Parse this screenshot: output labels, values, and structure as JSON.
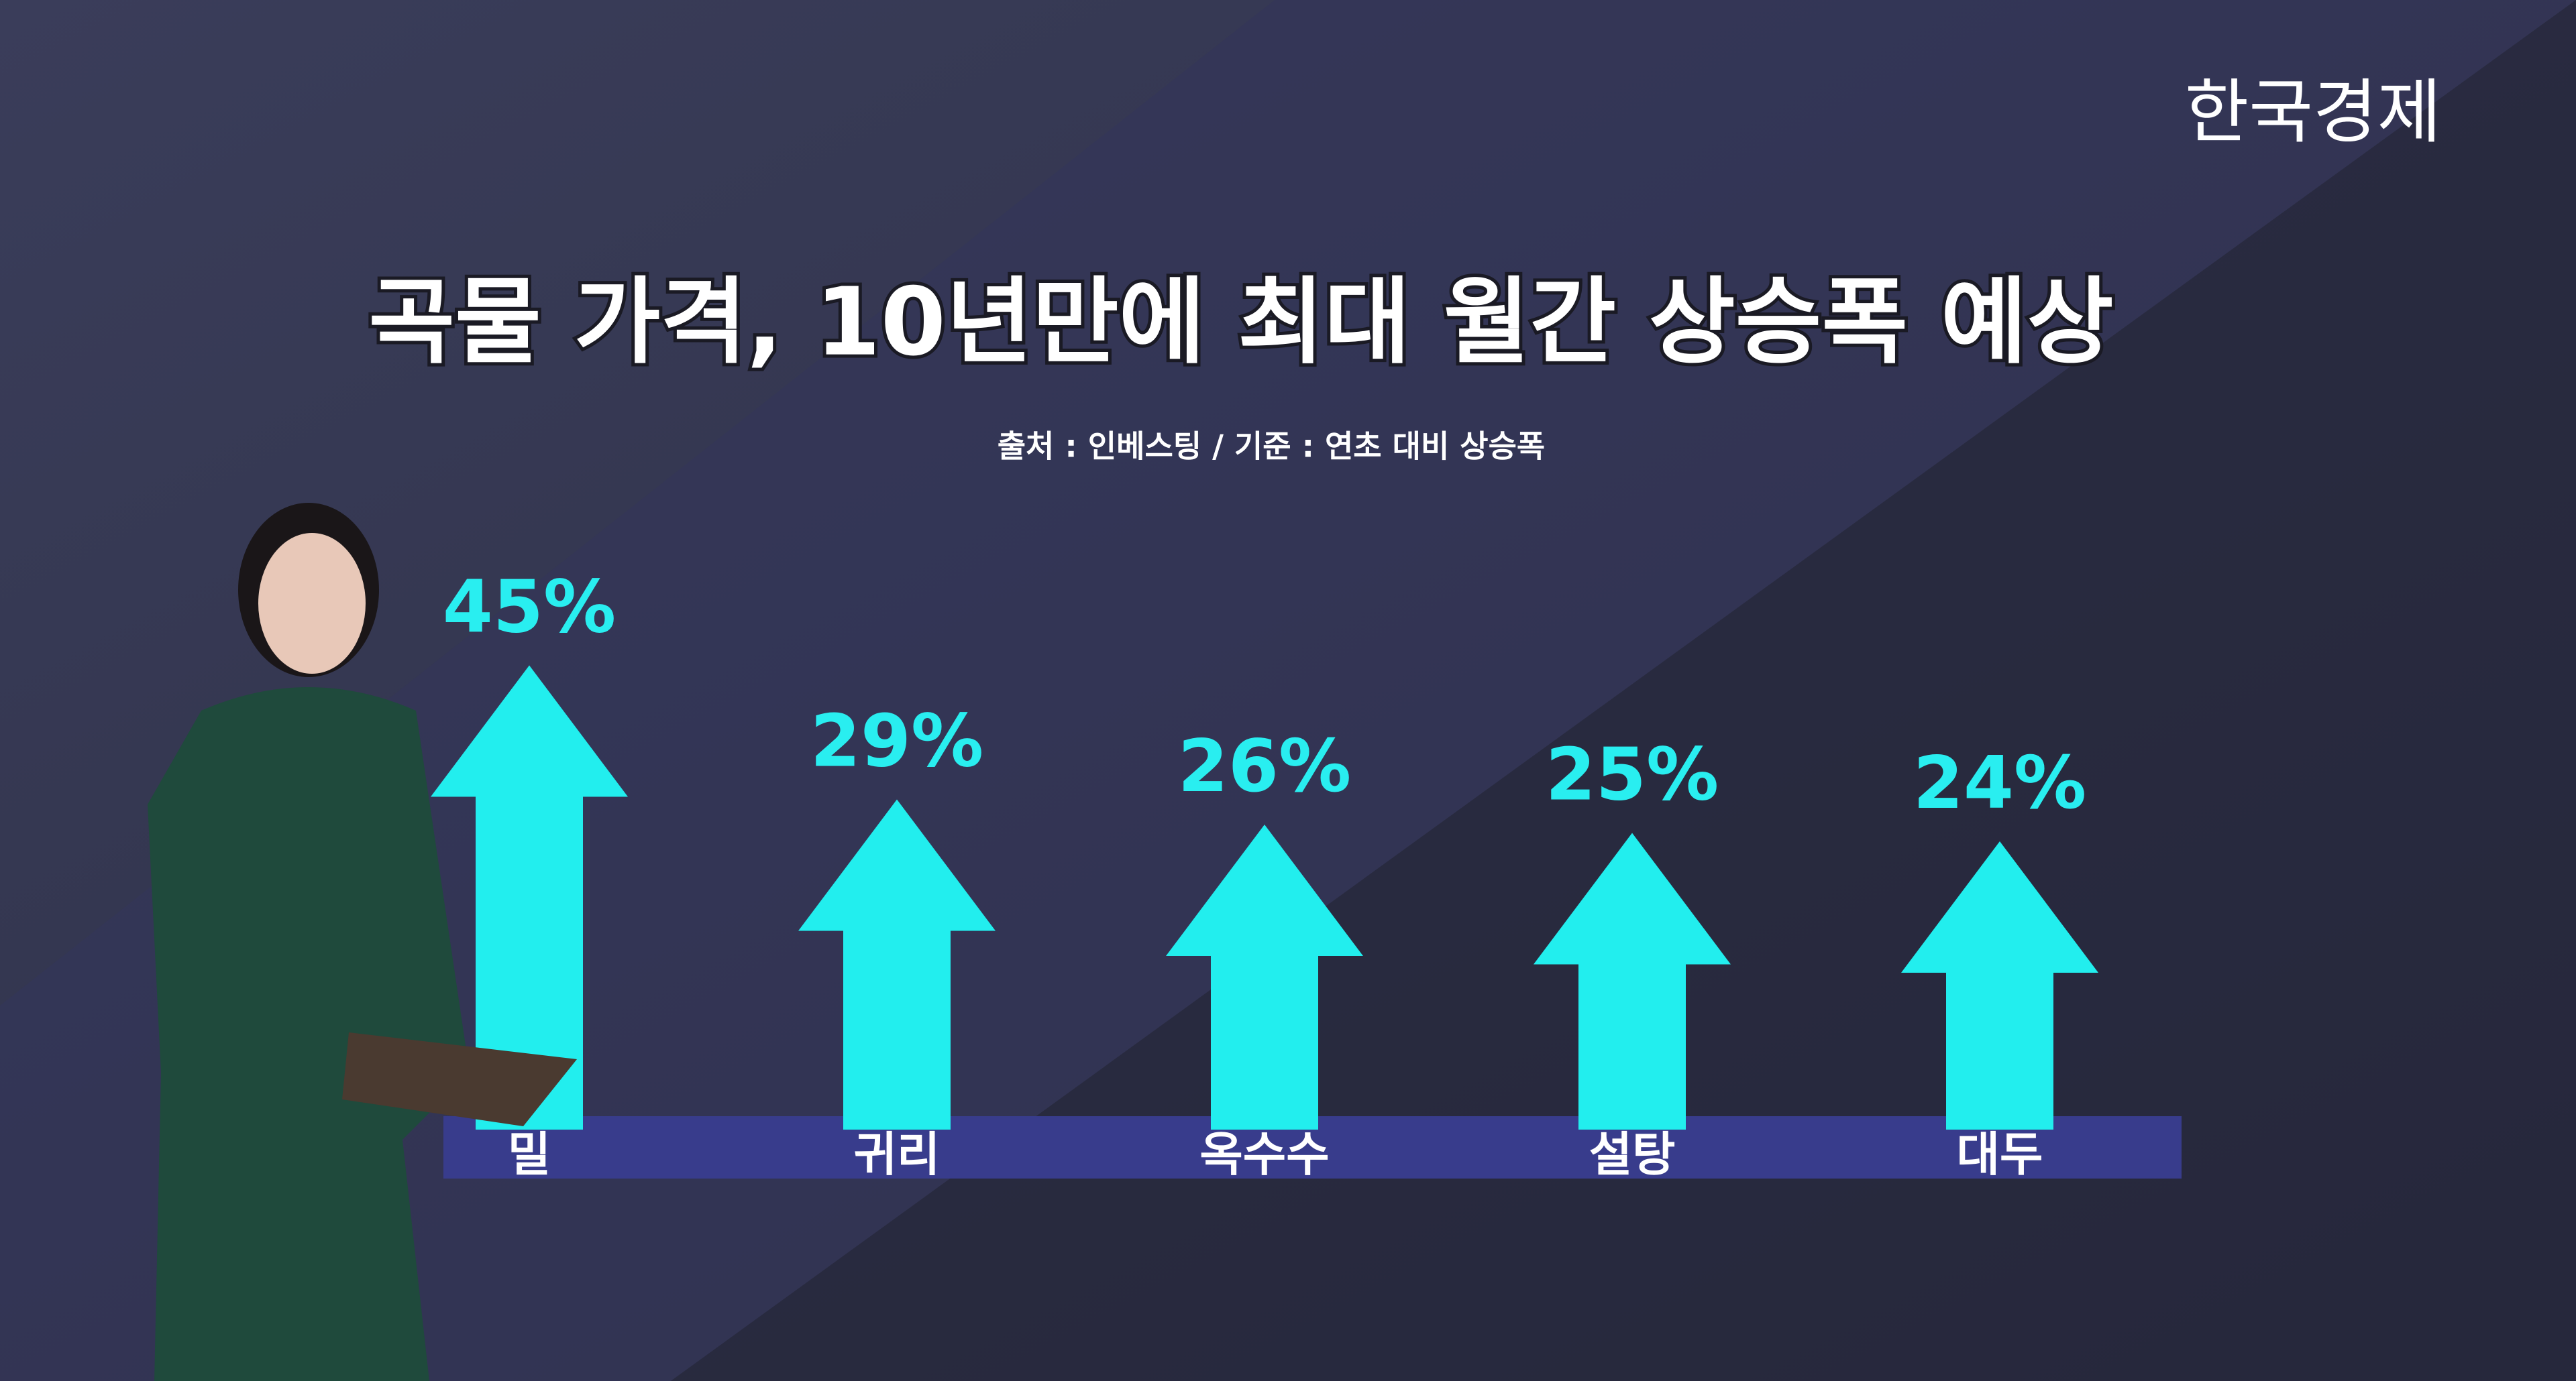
{
  "logo": "한국경제",
  "chart_data": {
    "type": "arrow-bar",
    "title": "곡물 가격, 10년만에 최대 월간 상승폭 예상",
    "subtitle": "출처 : 인베스팅 / 기준 : 연초 대비 상승폭",
    "categories": [
      "밀",
      "귀리",
      "옥수수",
      "설탕",
      "대두"
    ],
    "values": [
      45,
      29,
      26,
      25,
      24
    ],
    "value_labels": [
      "45%",
      "29%",
      "26%",
      "25%",
      "24%"
    ],
    "color": "#22eeee"
  }
}
